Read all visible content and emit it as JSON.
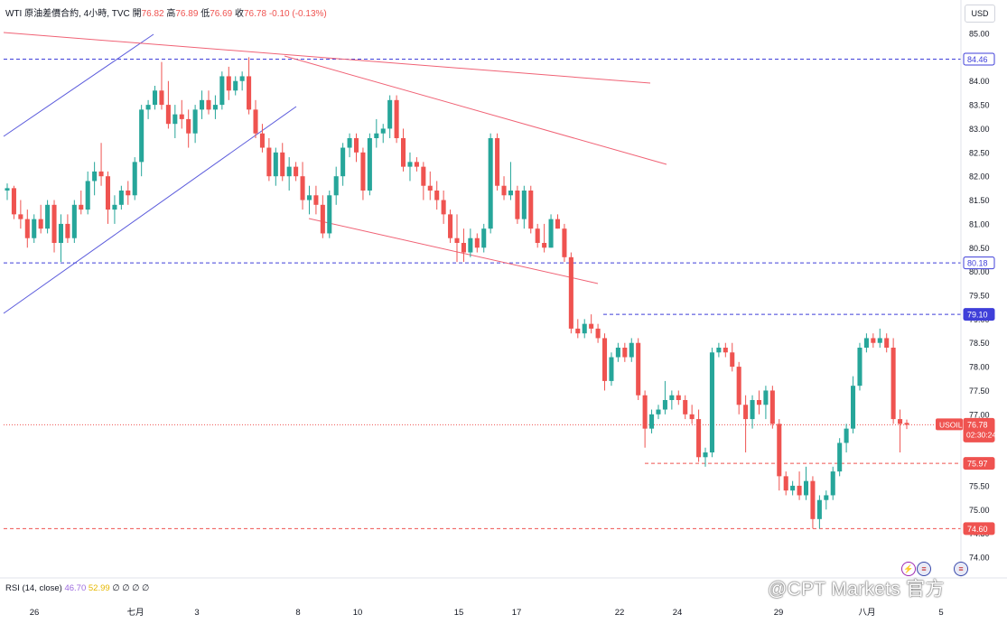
{
  "header": {
    "symbol_line": "WTI 原油差價合約, 4小時, TVC",
    "open_label": "開",
    "open": "76.82",
    "high_label": "高",
    "high": "76.89",
    "low_label": "低",
    "low": "76.69",
    "close_label": "收",
    "close": "76.78",
    "change": "-0.10 (-0.13%)"
  },
  "currency_button": "USD",
  "rsi": {
    "label": "RSI (14, close)",
    "value1": "46.70",
    "value2": "52.99",
    "extra": "∅ ∅ ∅ ∅"
  },
  "watermark": "@CPT Markets 官方",
  "colors": {
    "up": "#26a69a",
    "down": "#ef5350",
    "trendline_blue": "#5b5bdc",
    "trendline_red": "#f06275",
    "hline_blue": "#3f3fd9",
    "hline_red": "#ef5350"
  },
  "chart_data": {
    "type": "candlestick",
    "symbol": "USOIL",
    "interval": "4小時",
    "y_ticks": [
      "85.00",
      "84.50",
      "84.00",
      "83.50",
      "83.00",
      "82.50",
      "82.00",
      "81.50",
      "81.00",
      "80.50",
      "80.00",
      "79.50",
      "79.00",
      "78.50",
      "78.00",
      "77.50",
      "77.00",
      "76.50",
      "76.00",
      "75.50",
      "75.00",
      "74.50",
      "74.00"
    ],
    "ylim": [
      73.8,
      85.3
    ],
    "x_ticks": [
      "26",
      "七月",
      "3",
      "8",
      "10",
      "15",
      "17",
      "22",
      "24",
      "29",
      "八月",
      "5"
    ],
    "price_labels": [
      {
        "label": "84.46",
        "value": 84.46,
        "style": "blue"
      },
      {
        "label": "80.18",
        "value": 80.18,
        "style": "blue"
      },
      {
        "label": "79.10",
        "value": 79.1,
        "style": "blue-filled"
      },
      {
        "label": "76.78",
        "value": 76.78,
        "style": "current"
      },
      {
        "label": "75.97",
        "value": 75.97,
        "style": "red"
      },
      {
        "label": "74.60",
        "value": 74.6,
        "style": "red"
      }
    ],
    "current": {
      "symbol_tag": "USOIL",
      "price": "76.78",
      "countdown": "02:30:24"
    },
    "candles": [
      {
        "o": 81.7,
        "h": 81.85,
        "l": 81.5,
        "c": 81.75
      },
      {
        "o": 81.75,
        "h": 81.8,
        "l": 81.1,
        "c": 81.2
      },
      {
        "o": 81.2,
        "h": 81.5,
        "l": 80.9,
        "c": 81.1
      },
      {
        "o": 81.1,
        "h": 81.3,
        "l": 80.5,
        "c": 80.7
      },
      {
        "o": 80.7,
        "h": 81.2,
        "l": 80.6,
        "c": 81.1
      },
      {
        "o": 81.1,
        "h": 81.4,
        "l": 80.8,
        "c": 80.9
      },
      {
        "o": 80.9,
        "h": 81.5,
        "l": 80.8,
        "c": 81.4
      },
      {
        "o": 81.4,
        "h": 81.5,
        "l": 80.4,
        "c": 80.6
      },
      {
        "o": 80.6,
        "h": 81.2,
        "l": 80.2,
        "c": 81.0
      },
      {
        "o": 81.0,
        "h": 81.2,
        "l": 80.6,
        "c": 80.7
      },
      {
        "o": 80.7,
        "h": 81.5,
        "l": 80.6,
        "c": 81.4
      },
      {
        "o": 81.4,
        "h": 81.7,
        "l": 81.2,
        "c": 81.3
      },
      {
        "o": 81.3,
        "h": 82.1,
        "l": 81.2,
        "c": 81.9
      },
      {
        "o": 81.9,
        "h": 82.3,
        "l": 81.6,
        "c": 82.1
      },
      {
        "o": 82.1,
        "h": 82.7,
        "l": 81.8,
        "c": 82.0
      },
      {
        "o": 82.0,
        "h": 82.1,
        "l": 81.0,
        "c": 81.3
      },
      {
        "o": 81.3,
        "h": 81.6,
        "l": 81.0,
        "c": 81.4
      },
      {
        "o": 81.4,
        "h": 81.8,
        "l": 81.3,
        "c": 81.7
      },
      {
        "o": 81.7,
        "h": 81.9,
        "l": 81.4,
        "c": 81.6
      },
      {
        "o": 81.6,
        "h": 82.4,
        "l": 81.5,
        "c": 82.3
      },
      {
        "o": 82.3,
        "h": 83.5,
        "l": 82.0,
        "c": 83.4
      },
      {
        "o": 83.4,
        "h": 83.6,
        "l": 83.2,
        "c": 83.5
      },
      {
        "o": 83.5,
        "h": 83.9,
        "l": 83.4,
        "c": 83.8
      },
      {
        "o": 83.8,
        "h": 84.4,
        "l": 83.4,
        "c": 83.5
      },
      {
        "o": 83.5,
        "h": 84.0,
        "l": 83.0,
        "c": 83.1
      },
      {
        "o": 83.1,
        "h": 83.5,
        "l": 82.8,
        "c": 83.3
      },
      {
        "o": 83.3,
        "h": 83.6,
        "l": 83.0,
        "c": 83.2
      },
      {
        "o": 83.2,
        "h": 83.4,
        "l": 82.6,
        "c": 82.9
      },
      {
        "o": 82.9,
        "h": 83.5,
        "l": 82.7,
        "c": 83.4
      },
      {
        "o": 83.4,
        "h": 83.8,
        "l": 83.2,
        "c": 83.6
      },
      {
        "o": 83.6,
        "h": 83.8,
        "l": 83.3,
        "c": 83.4
      },
      {
        "o": 83.4,
        "h": 83.7,
        "l": 83.2,
        "c": 83.5
      },
      {
        "o": 83.5,
        "h": 84.2,
        "l": 83.4,
        "c": 84.1
      },
      {
        "o": 84.1,
        "h": 84.3,
        "l": 83.6,
        "c": 83.8
      },
      {
        "o": 83.8,
        "h": 84.1,
        "l": 83.7,
        "c": 84.0
      },
      {
        "o": 84.0,
        "h": 84.2,
        "l": 83.8,
        "c": 84.1
      },
      {
        "o": 84.1,
        "h": 84.5,
        "l": 83.3,
        "c": 83.4
      },
      {
        "o": 83.4,
        "h": 83.6,
        "l": 82.8,
        "c": 82.9
      },
      {
        "o": 82.9,
        "h": 83.1,
        "l": 82.5,
        "c": 82.6
      },
      {
        "o": 82.6,
        "h": 82.8,
        "l": 81.9,
        "c": 82.0
      },
      {
        "o": 82.0,
        "h": 82.6,
        "l": 81.8,
        "c": 82.5
      },
      {
        "o": 82.5,
        "h": 82.7,
        "l": 81.9,
        "c": 82.0
      },
      {
        "o": 82.0,
        "h": 82.4,
        "l": 81.7,
        "c": 82.2
      },
      {
        "o": 82.2,
        "h": 82.3,
        "l": 81.9,
        "c": 82.0
      },
      {
        "o": 82.0,
        "h": 82.3,
        "l": 81.3,
        "c": 81.5
      },
      {
        "o": 81.5,
        "h": 81.8,
        "l": 81.2,
        "c": 81.6
      },
      {
        "o": 81.6,
        "h": 81.8,
        "l": 81.2,
        "c": 81.4
      },
      {
        "o": 81.4,
        "h": 81.6,
        "l": 80.7,
        "c": 80.8
      },
      {
        "o": 80.8,
        "h": 81.7,
        "l": 80.7,
        "c": 81.6
      },
      {
        "o": 81.6,
        "h": 82.2,
        "l": 81.4,
        "c": 82.0
      },
      {
        "o": 82.0,
        "h": 82.7,
        "l": 81.8,
        "c": 82.6
      },
      {
        "o": 82.6,
        "h": 82.9,
        "l": 82.4,
        "c": 82.8
      },
      {
        "o": 82.8,
        "h": 82.9,
        "l": 82.3,
        "c": 82.5
      },
      {
        "o": 82.5,
        "h": 82.6,
        "l": 81.5,
        "c": 81.7
      },
      {
        "o": 81.7,
        "h": 82.9,
        "l": 81.6,
        "c": 82.8
      },
      {
        "o": 82.8,
        "h": 83.2,
        "l": 82.6,
        "c": 82.9
      },
      {
        "o": 82.9,
        "h": 83.1,
        "l": 82.7,
        "c": 83.0
      },
      {
        "o": 83.0,
        "h": 83.7,
        "l": 82.8,
        "c": 83.6
      },
      {
        "o": 83.6,
        "h": 83.7,
        "l": 82.7,
        "c": 82.8
      },
      {
        "o": 82.8,
        "h": 83.0,
        "l": 82.1,
        "c": 82.2
      },
      {
        "o": 82.2,
        "h": 82.5,
        "l": 81.9,
        "c": 82.3
      },
      {
        "o": 82.3,
        "h": 82.4,
        "l": 82.1,
        "c": 82.2
      },
      {
        "o": 82.2,
        "h": 82.3,
        "l": 81.5,
        "c": 81.8
      },
      {
        "o": 81.8,
        "h": 82.1,
        "l": 81.5,
        "c": 81.7
      },
      {
        "o": 81.7,
        "h": 81.9,
        "l": 81.3,
        "c": 81.5
      },
      {
        "o": 81.5,
        "h": 81.7,
        "l": 81.0,
        "c": 81.2
      },
      {
        "o": 81.2,
        "h": 81.3,
        "l": 80.6,
        "c": 80.7
      },
      {
        "o": 80.7,
        "h": 81.2,
        "l": 80.2,
        "c": 80.6
      },
      {
        "o": 80.6,
        "h": 80.9,
        "l": 80.2,
        "c": 80.4
      },
      {
        "o": 80.4,
        "h": 80.9,
        "l": 80.3,
        "c": 80.7
      },
      {
        "o": 80.7,
        "h": 80.8,
        "l": 80.4,
        "c": 80.5
      },
      {
        "o": 80.5,
        "h": 81.0,
        "l": 80.4,
        "c": 80.9
      },
      {
        "o": 80.9,
        "h": 82.9,
        "l": 80.8,
        "c": 82.8
      },
      {
        "o": 82.8,
        "h": 82.9,
        "l": 81.7,
        "c": 81.8
      },
      {
        "o": 81.8,
        "h": 82.0,
        "l": 81.5,
        "c": 81.6
      },
      {
        "o": 81.6,
        "h": 82.3,
        "l": 81.5,
        "c": 81.7
      },
      {
        "o": 81.7,
        "h": 81.8,
        "l": 81.0,
        "c": 81.1
      },
      {
        "o": 81.1,
        "h": 81.8,
        "l": 80.9,
        "c": 81.7
      },
      {
        "o": 81.7,
        "h": 81.8,
        "l": 80.8,
        "c": 80.9
      },
      {
        "o": 80.9,
        "h": 81.0,
        "l": 80.5,
        "c": 80.6
      },
      {
        "o": 80.6,
        "h": 81.0,
        "l": 80.4,
        "c": 80.5
      },
      {
        "o": 80.5,
        "h": 81.2,
        "l": 80.5,
        "c": 81.1
      },
      {
        "o": 81.1,
        "h": 81.2,
        "l": 80.9,
        "c": 80.9
      },
      {
        "o": 80.9,
        "h": 81.0,
        "l": 80.2,
        "c": 80.3
      },
      {
        "o": 80.3,
        "h": 80.4,
        "l": 78.7,
        "c": 78.8
      },
      {
        "o": 78.8,
        "h": 79.0,
        "l": 78.6,
        "c": 78.7
      },
      {
        "o": 78.7,
        "h": 79.0,
        "l": 78.6,
        "c": 78.9
      },
      {
        "o": 78.9,
        "h": 79.1,
        "l": 78.7,
        "c": 78.8
      },
      {
        "o": 78.8,
        "h": 78.9,
        "l": 78.5,
        "c": 78.6
      },
      {
        "o": 78.6,
        "h": 78.7,
        "l": 77.5,
        "c": 77.7
      },
      {
        "o": 77.7,
        "h": 78.3,
        "l": 77.6,
        "c": 78.2
      },
      {
        "o": 78.2,
        "h": 78.5,
        "l": 78.1,
        "c": 78.4
      },
      {
        "o": 78.4,
        "h": 78.5,
        "l": 78.1,
        "c": 78.2
      },
      {
        "o": 78.2,
        "h": 78.6,
        "l": 78.1,
        "c": 78.5
      },
      {
        "o": 78.5,
        "h": 78.6,
        "l": 77.3,
        "c": 77.4
      },
      {
        "o": 77.4,
        "h": 77.5,
        "l": 76.3,
        "c": 76.7
      },
      {
        "o": 76.7,
        "h": 77.1,
        "l": 76.6,
        "c": 77.0
      },
      {
        "o": 77.0,
        "h": 77.2,
        "l": 76.9,
        "c": 77.1
      },
      {
        "o": 77.1,
        "h": 77.7,
        "l": 77.0,
        "c": 77.3
      },
      {
        "o": 77.3,
        "h": 77.5,
        "l": 77.1,
        "c": 77.4
      },
      {
        "o": 77.4,
        "h": 77.5,
        "l": 77.2,
        "c": 77.3
      },
      {
        "o": 77.3,
        "h": 77.4,
        "l": 76.9,
        "c": 77.0
      },
      {
        "o": 77.0,
        "h": 77.2,
        "l": 76.8,
        "c": 76.9
      },
      {
        "o": 76.9,
        "h": 77.1,
        "l": 76.0,
        "c": 76.1
      },
      {
        "o": 76.1,
        "h": 76.3,
        "l": 75.9,
        "c": 76.2
      },
      {
        "o": 76.2,
        "h": 78.4,
        "l": 76.1,
        "c": 78.3
      },
      {
        "o": 78.3,
        "h": 78.5,
        "l": 78.2,
        "c": 78.4
      },
      {
        "o": 78.4,
        "h": 78.5,
        "l": 78.2,
        "c": 78.3
      },
      {
        "o": 78.3,
        "h": 78.5,
        "l": 77.9,
        "c": 78.0
      },
      {
        "o": 78.0,
        "h": 78.1,
        "l": 77.0,
        "c": 77.2
      },
      {
        "o": 77.2,
        "h": 77.4,
        "l": 76.2,
        "c": 76.9
      },
      {
        "o": 76.9,
        "h": 77.4,
        "l": 76.7,
        "c": 77.3
      },
      {
        "o": 77.3,
        "h": 77.5,
        "l": 77.0,
        "c": 77.2
      },
      {
        "o": 77.2,
        "h": 77.6,
        "l": 76.9,
        "c": 77.5
      },
      {
        "o": 77.5,
        "h": 77.6,
        "l": 76.7,
        "c": 76.8
      },
      {
        "o": 76.8,
        "h": 76.9,
        "l": 75.4,
        "c": 75.7
      },
      {
        "o": 75.7,
        "h": 75.8,
        "l": 75.3,
        "c": 75.4
      },
      {
        "o": 75.4,
        "h": 75.6,
        "l": 75.3,
        "c": 75.5
      },
      {
        "o": 75.5,
        "h": 75.8,
        "l": 75.2,
        "c": 75.3
      },
      {
        "o": 75.3,
        "h": 75.9,
        "l": 75.2,
        "c": 75.6
      },
      {
        "o": 75.6,
        "h": 75.7,
        "l": 74.6,
        "c": 74.8
      },
      {
        "o": 74.8,
        "h": 75.3,
        "l": 74.6,
        "c": 75.2
      },
      {
        "o": 75.2,
        "h": 75.4,
        "l": 75.0,
        "c": 75.3
      },
      {
        "o": 75.3,
        "h": 75.9,
        "l": 75.2,
        "c": 75.8
      },
      {
        "o": 75.8,
        "h": 76.5,
        "l": 75.7,
        "c": 76.4
      },
      {
        "o": 76.4,
        "h": 76.8,
        "l": 76.2,
        "c": 76.7
      },
      {
        "o": 76.7,
        "h": 77.8,
        "l": 76.6,
        "c": 77.6
      },
      {
        "o": 77.6,
        "h": 78.5,
        "l": 77.5,
        "c": 78.4
      },
      {
        "o": 78.4,
        "h": 78.7,
        "l": 78.3,
        "c": 78.6
      },
      {
        "o": 78.6,
        "h": 78.7,
        "l": 78.4,
        "c": 78.5
      },
      {
        "o": 78.5,
        "h": 78.8,
        "l": 78.4,
        "c": 78.6
      },
      {
        "o": 78.6,
        "h": 78.7,
        "l": 78.3,
        "c": 78.4
      },
      {
        "o": 78.4,
        "h": 78.6,
        "l": 76.8,
        "c": 76.9
      },
      {
        "o": 76.9,
        "h": 77.1,
        "l": 76.2,
        "c": 76.8
      },
      {
        "o": 76.82,
        "h": 76.89,
        "l": 76.69,
        "c": 76.78
      }
    ]
  }
}
